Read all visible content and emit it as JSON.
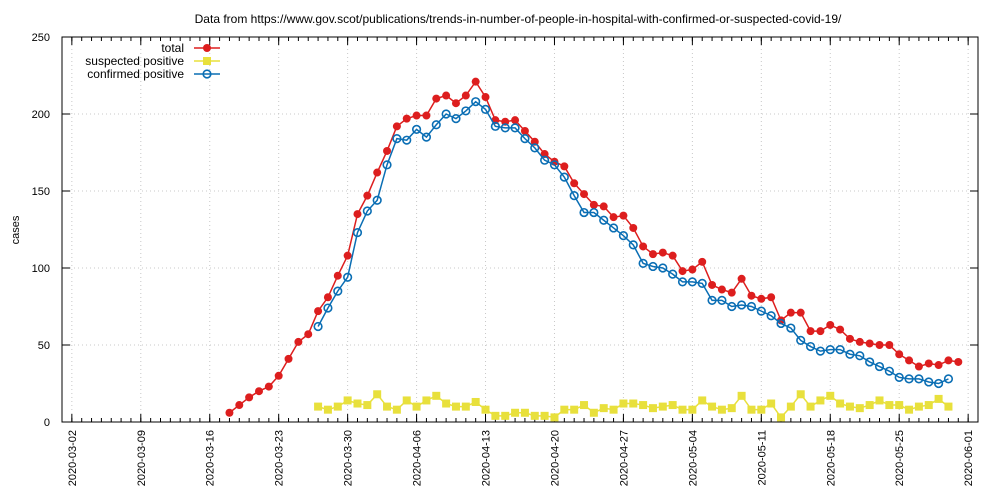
{
  "chart_data": {
    "type": "line",
    "title": "Data from https://www.gov.scot/publications/trends-in-number-of-people-in-hospital-with-confirmed-or-suspected-covid-19/",
    "xlabel": "",
    "ylabel": "cases",
    "xlim": [
      "2020-03-01",
      "2020-06-02"
    ],
    "ylim": [
      0,
      250
    ],
    "x_ticks": [
      "2020-03-02",
      "2020-03-09",
      "2020-03-16",
      "2020-03-23",
      "2020-03-30",
      "2020-04-06",
      "2020-04-13",
      "2020-04-20",
      "2020-04-27",
      "2020-05-04",
      "2020-05-11",
      "2020-05-18",
      "2020-05-25",
      "2020-06-01"
    ],
    "y_ticks": [
      0,
      50,
      100,
      150,
      200,
      250
    ],
    "grid": true,
    "legend": "top-left",
    "series": [
      {
        "name": "total",
        "color": "#dd1e1e",
        "marker": "filled-circle",
        "start": "2020-03-18",
        "values": [
          6,
          11,
          16,
          20,
          23,
          30,
          41,
          52,
          57,
          72,
          81,
          95,
          108,
          135,
          147,
          162,
          176,
          192,
          197,
          199,
          199,
          210,
          212,
          207,
          212,
          221,
          211,
          196,
          195,
          196,
          189,
          182,
          174,
          169,
          166,
          155,
          148,
          141,
          140,
          133,
          134,
          126,
          114,
          109,
          110,
          108,
          98,
          99,
          104,
          89,
          86,
          84,
          93,
          82,
          80,
          81,
          66,
          71,
          71,
          59,
          59,
          63,
          60,
          54,
          52,
          51,
          50,
          50,
          44,
          40,
          36,
          38,
          37,
          40,
          39
        ]
      },
      {
        "name": "suspected positive",
        "color": "#e8e03c",
        "marker": "filled-square",
        "start": "2020-03-27",
        "values": [
          10,
          8,
          10,
          14,
          12,
          11,
          18,
          10,
          8,
          14,
          10,
          14,
          17,
          12,
          10,
          10,
          13,
          8,
          4,
          4,
          6,
          6,
          4,
          4,
          3,
          8,
          8,
          11,
          6,
          9,
          8,
          12,
          12,
          11,
          9,
          10,
          11,
          8,
          8,
          14,
          10,
          8,
          9,
          17,
          8,
          8,
          12,
          3,
          10,
          18,
          10,
          14,
          17,
          12,
          10,
          9,
          11,
          14,
          11,
          11,
          8,
          10,
          11,
          15,
          10
        ]
      },
      {
        "name": "confirmed positive",
        "color": "#0a6eb4",
        "marker": "open-circle",
        "start": "2020-03-27",
        "values": [
          62,
          74,
          85,
          94,
          123,
          137,
          144,
          167,
          184,
          183,
          190,
          185,
          193,
          200,
          197,
          202,
          208,
          203,
          192,
          191,
          191,
          184,
          178,
          170,
          167,
          159,
          147,
          136,
          136,
          131,
          126,
          121,
          115,
          103,
          101,
          100,
          96,
          91,
          91,
          90,
          79,
          79,
          75,
          76,
          75,
          72,
          69,
          64,
          61,
          53,
          49,
          46,
          47,
          47,
          44,
          43,
          39,
          36,
          33,
          29,
          28,
          28,
          26,
          25,
          28
        ]
      }
    ]
  }
}
